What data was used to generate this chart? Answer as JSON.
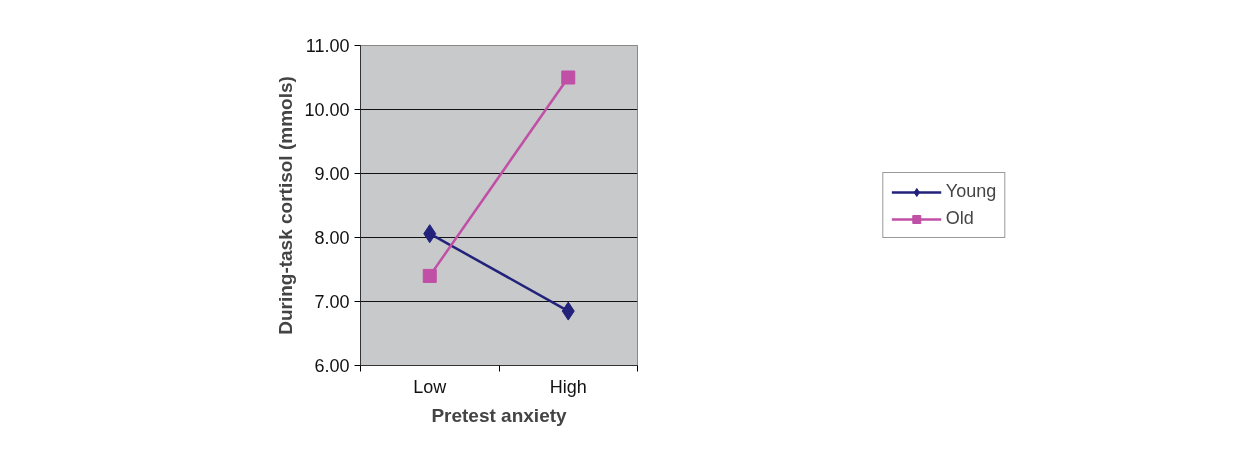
{
  "chart_data": {
    "type": "line",
    "xlabel": "Pretest anxiety",
    "ylabel": "During-task cortisol (mmols)",
    "categories": [
      "Low",
      "High"
    ],
    "series": [
      {
        "name": "Young",
        "color": "#22227a",
        "marker": "diamond",
        "values": [
          8.06,
          6.85
        ]
      },
      {
        "name": "Old",
        "color": "#c04fa6",
        "marker": "square",
        "values": [
          7.4,
          10.5
        ]
      }
    ],
    "ylim": [
      6,
      11
    ],
    "yticks": [
      {
        "value": 6,
        "label": "6.00"
      },
      {
        "value": 7,
        "label": "7.00"
      },
      {
        "value": 8,
        "label": "8.00"
      },
      {
        "value": 9,
        "label": "9.00"
      },
      {
        "value": 10,
        "label": "10.00"
      },
      {
        "value": 11,
        "label": "11.00"
      }
    ],
    "grid": "y",
    "legend": "right",
    "line_style": "solid"
  }
}
